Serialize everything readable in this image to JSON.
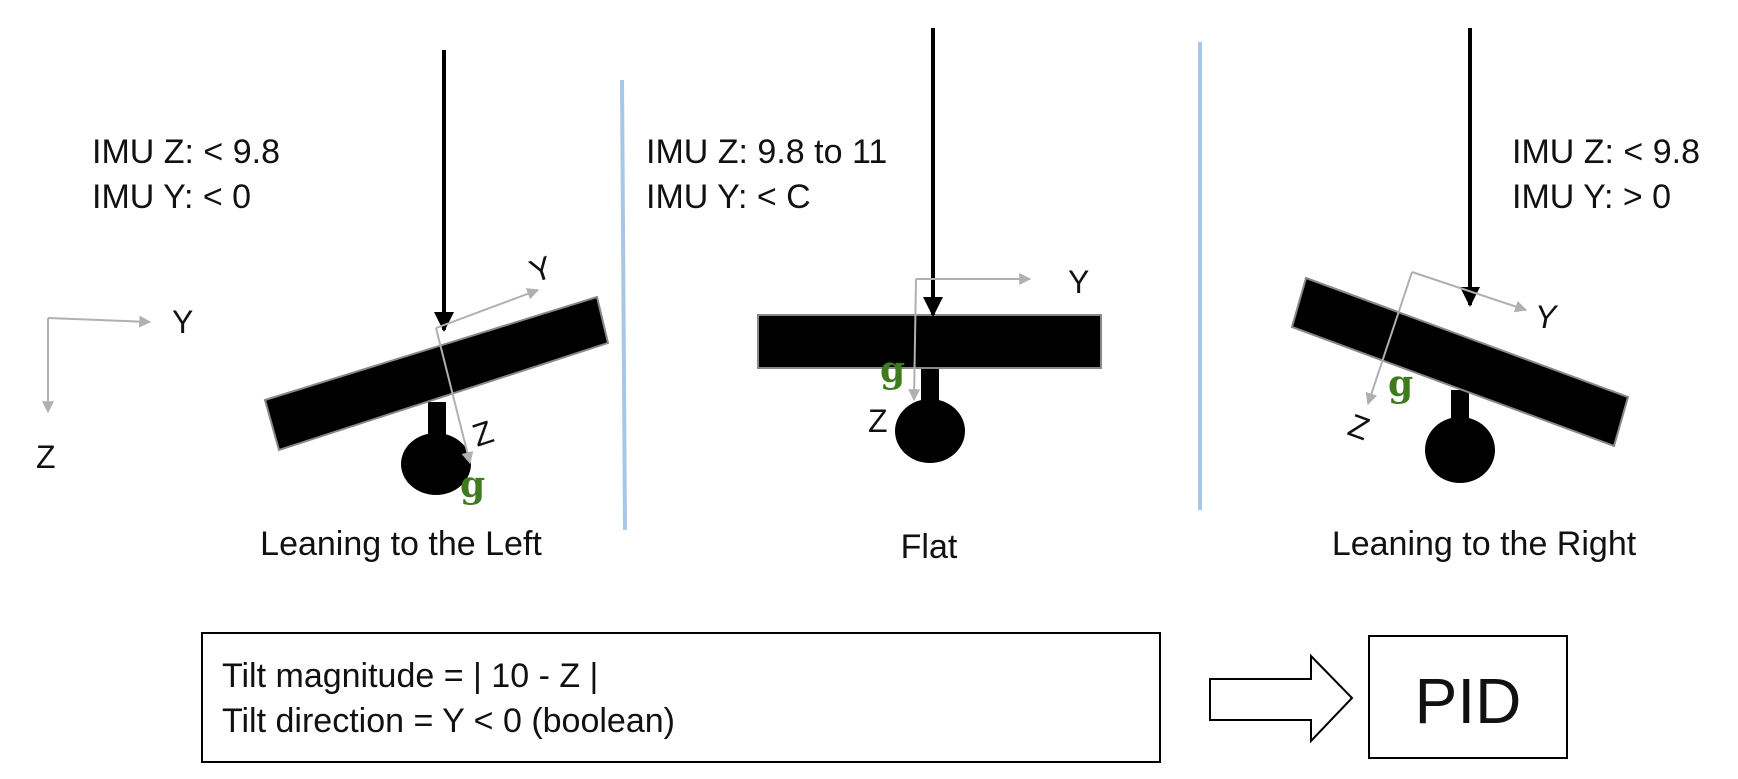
{
  "colors": {
    "force": "#000000",
    "axis": "#b0b0b0",
    "divider": "#a8c6e6",
    "gravity": "#3f7a1f",
    "box_border": "#000000"
  },
  "reference_axes": {
    "y_label": "Y",
    "z_label": "Z"
  },
  "panels": [
    {
      "caption": "Leaning to the Left",
      "readings": [
        "IMU Z: < 9.8",
        "IMU Y: < 0"
      ],
      "axis_y": "Y",
      "axis_z": "Z",
      "gravity": "g"
    },
    {
      "caption": "Flat",
      "readings": [
        "IMU Z: 9.8 to 11",
        "IMU Y:  < C"
      ],
      "axis_y": "Y",
      "axis_z": "Z",
      "gravity": "g"
    },
    {
      "caption": "Leaning to the Right",
      "readings": [
        "IMU Z: < 9.8",
        "IMU Y:  > 0"
      ],
      "axis_y": "Y",
      "axis_z": "Z",
      "gravity": "g"
    }
  ],
  "formula": {
    "line1": "Tilt magnitude = | 10 - Z |",
    "line2": "Tilt direction = Y < 0 (boolean)"
  },
  "controller": {
    "label": "PID"
  }
}
